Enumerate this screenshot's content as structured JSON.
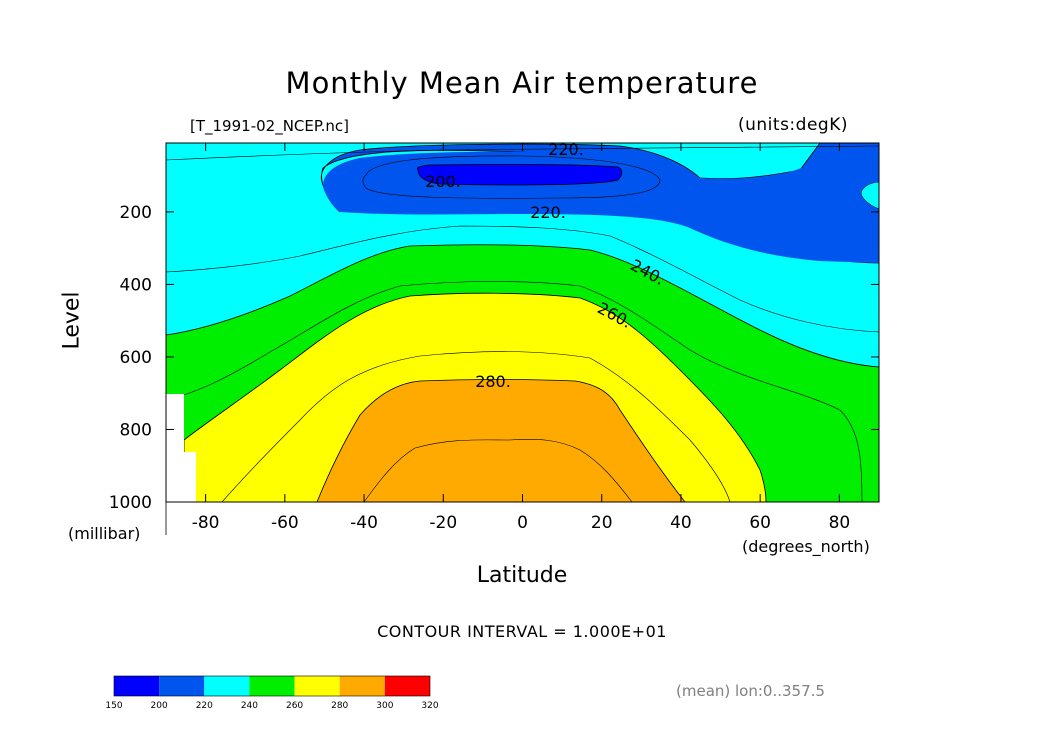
{
  "chart_data": {
    "type": "heatmap",
    "title": "Monthly Mean Air temperature",
    "source_file": "[T_1991-02_NCEP.nc]",
    "units_label": "(units:degK)",
    "xlabel": "Latitude",
    "x_units": "(degrees_north)",
    "ylabel": "Level",
    "y_units": "(millibar)",
    "xlim": [
      -90,
      90
    ],
    "ylim": [
      1000,
      10
    ],
    "x_ticks": [
      "-80",
      "-60",
      "-40",
      "-20",
      "0",
      "20",
      "40",
      "60",
      "80"
    ],
    "y_ticks": [
      "200",
      "400",
      "600",
      "800",
      "1000"
    ],
    "contour_interval_text": "CONTOUR INTERVAL = 1.000E+01",
    "contour_labels": [
      "220.",
      "200.",
      "220.",
      "240.",
      "260.",
      "280."
    ],
    "colorbar": {
      "levels": [
        "150",
        "200",
        "220",
        "240",
        "260",
        "280",
        "300",
        "320"
      ],
      "colors": [
        "#0000ff",
        "#0055ee",
        "#00ffff",
        "#00ee00",
        "#ffff00",
        "#ffaa00",
        "#ff0000"
      ]
    },
    "footnote": "(mean) lon:0..357.5"
  }
}
